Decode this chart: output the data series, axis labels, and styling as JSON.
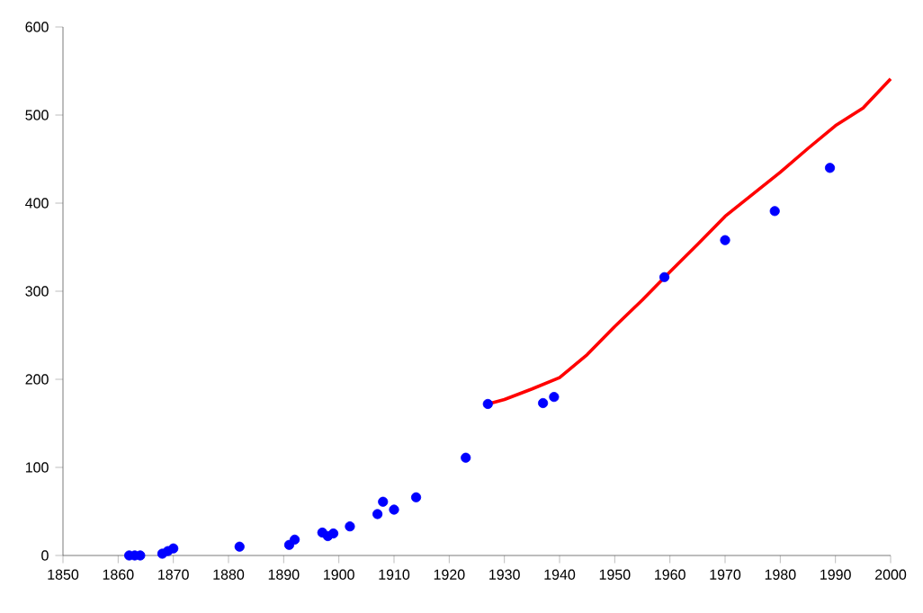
{
  "chart_data": {
    "type": "scatter",
    "xlim": [
      1850,
      2000
    ],
    "xticks": [
      1850,
      1860,
      1870,
      1880,
      1890,
      1900,
      1910,
      1920,
      1930,
      1940,
      1950,
      1960,
      1970,
      1980,
      1990,
      2000
    ],
    "ylim": [
      0,
      600
    ],
    "yticks": [
      0,
      100,
      200,
      300,
      400,
      500,
      600
    ],
    "grid": false,
    "series": [
      {
        "color": "#0000ff",
        "marker": "circle",
        "x": [
          1862,
          1863,
          1864,
          1868,
          1869,
          1870,
          1882,
          1891,
          1892,
          1897,
          1898,
          1899,
          1902,
          1907,
          1908,
          1910,
          1914,
          1923,
          1927,
          1937,
          1939,
          1959,
          1970,
          1979,
          1989
        ],
        "values": [
          0,
          0,
          0,
          2,
          5,
          8,
          10,
          12,
          18,
          26,
          22,
          25,
          33,
          47,
          61,
          52,
          66,
          111,
          172,
          173,
          180,
          316,
          358,
          391,
          440
        ]
      },
      {
        "type": "line",
        "color": "#ff0000",
        "marker": "none",
        "line_style": "solid",
        "x": [
          1927,
          1930,
          1935,
          1940,
          1945,
          1950,
          1955,
          1960,
          1965,
          1970,
          1975,
          1980,
          1985,
          1990,
          1995,
          2000
        ],
        "values": [
          172,
          177,
          189,
          202,
          228,
          260,
          290,
          322,
          353,
          385,
          410,
          435,
          462,
          488,
          508,
          541
        ]
      }
    ]
  }
}
